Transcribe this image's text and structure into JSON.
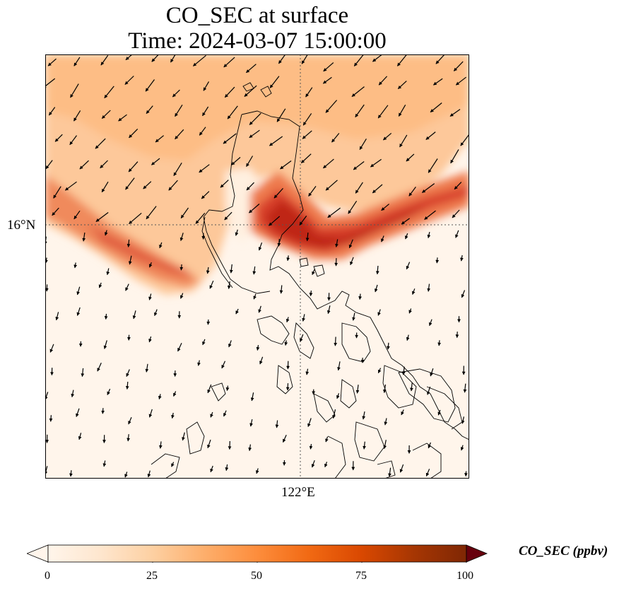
{
  "title": {
    "line1": "CO_SEC at surface",
    "line2": "Time: 2024-03-07 15:00:00"
  },
  "map": {
    "lat_label": "16°N",
    "lon_label": "122°E",
    "gridlines": "dotted"
  },
  "colorbar": {
    "label": "CO_SEC (ppbv)",
    "ticks": [
      "0",
      "25",
      "50",
      "75",
      "100"
    ],
    "min": 0,
    "max": 100,
    "extend": "both",
    "colormap": [
      "#fff5eb",
      "#fee6ce",
      "#fdd0a2",
      "#fdae6b",
      "#fd8d3c",
      "#f16913",
      "#d94801",
      "#a63603",
      "#7f2704"
    ]
  },
  "colors": {
    "background_low": "#fff5eb",
    "plume_mid": "#fdb078",
    "plume_high": "#c9281a"
  }
}
